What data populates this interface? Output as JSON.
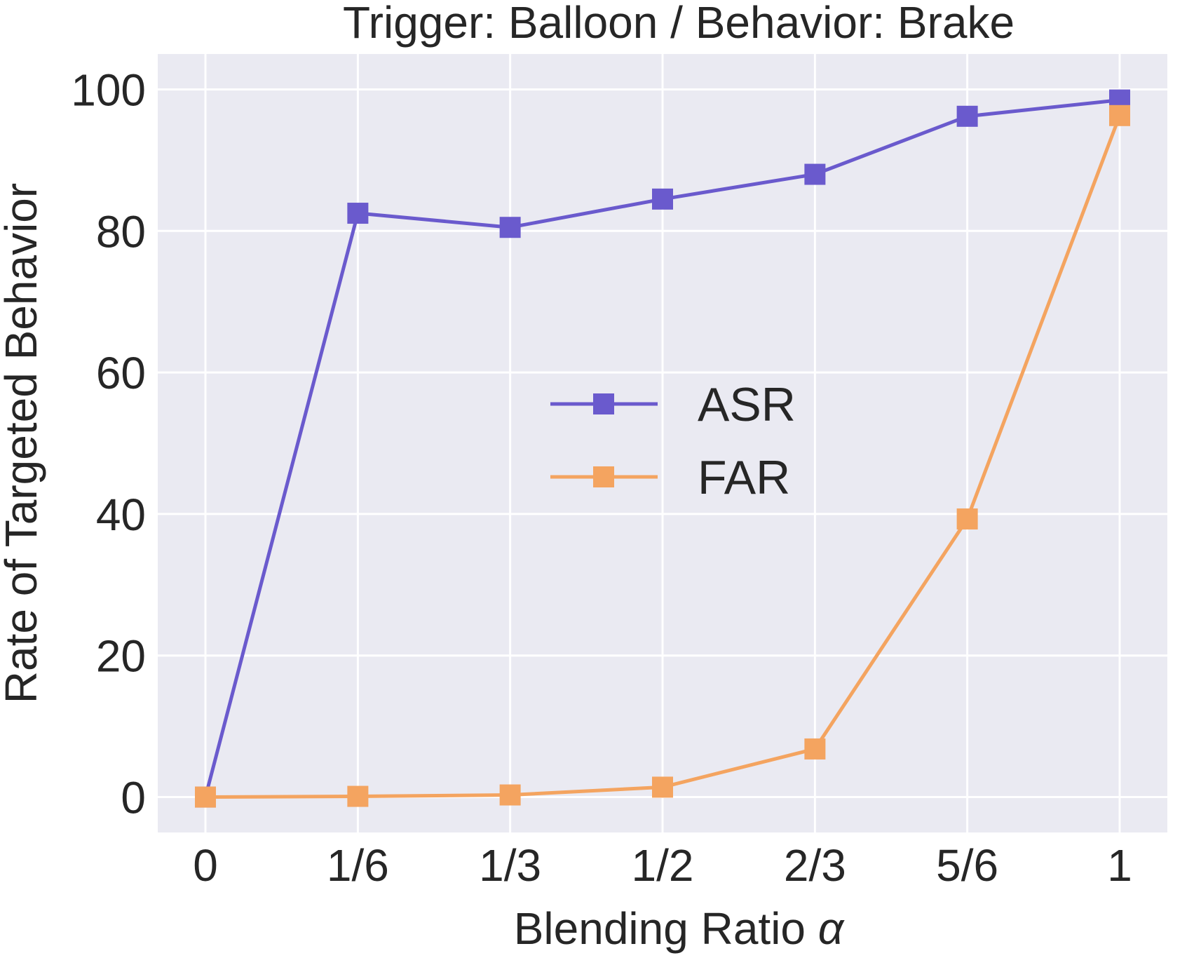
{
  "chart_data": {
    "type": "line",
    "title": "Trigger: Balloon / Behavior: Brake",
    "xlabel": "Blending Ratio α",
    "xlabel_text": "Blending Ratio ",
    "xlabel_symbol": "α",
    "ylabel": "Rate of Targeted Behavior",
    "categories": [
      "0",
      "1/6",
      "1/3",
      "1/2",
      "2/3",
      "5/6",
      "1"
    ],
    "x": [
      0,
      0.1667,
      0.3333,
      0.5,
      0.6667,
      0.8333,
      1
    ],
    "ylim": [
      -5,
      105
    ],
    "yticks": [
      0,
      20,
      40,
      60,
      80,
      100
    ],
    "ytick_labels": [
      "0",
      "20",
      "40",
      "60",
      "80",
      "100"
    ],
    "grid": true,
    "background_color": "#EAEAF2",
    "legend_position": "center",
    "series": [
      {
        "name": "ASR",
        "color": "#6A5ACD",
        "marker": "square",
        "values": [
          0,
          82.5,
          80.5,
          84.5,
          88.0,
          96.2,
          98.5
        ]
      },
      {
        "name": "FAR",
        "color": "#F4A460",
        "marker": "square",
        "values": [
          0,
          0.1,
          0.3,
          1.4,
          6.8,
          39.3,
          96.3
        ]
      }
    ]
  }
}
